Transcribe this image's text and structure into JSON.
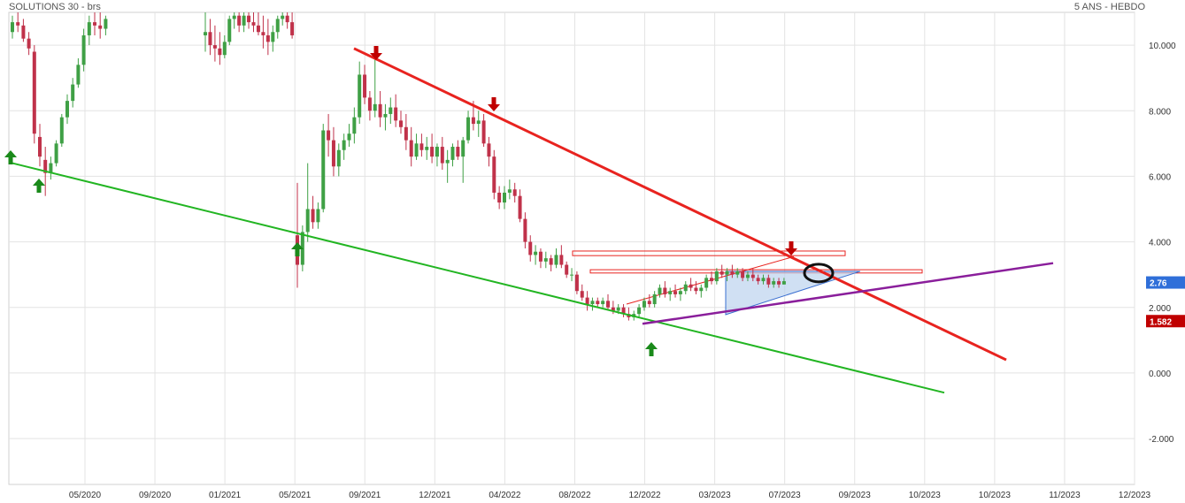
{
  "chart_data": {
    "type": "candlestick",
    "title": "SOLUTIONS 30 - brs",
    "subtitle": "5 ANS - HEBDO",
    "ylim": [
      -3.4,
      11.0
    ],
    "y_ticks": [
      {
        "value": 10,
        "label": "10.000"
      },
      {
        "value": 8,
        "label": "8.000"
      },
      {
        "value": 6,
        "label": "6.000"
      },
      {
        "value": 4,
        "label": "4.000"
      },
      {
        "value": 2,
        "label": "2.000"
      },
      {
        "value": 0,
        "label": "0.000"
      },
      {
        "value": -2,
        "label": "-2.000"
      }
    ],
    "x_labels": [
      "05/2020",
      "09/2020",
      "01/2021",
      "05/2021",
      "09/2021",
      "12/2021",
      "04/2022",
      "08/2022",
      "12/2022",
      "03/2023",
      "07/2023",
      "09/2023",
      "10/2023",
      "10/2023",
      "11/2023",
      "12/2023"
    ],
    "grid": true,
    "price_markers": [
      {
        "value": 2.76,
        "label": "2.76",
        "color": "#2f6fd9"
      },
      {
        "value": 1.582,
        "label": "1.582",
        "color": "#c00000"
      }
    ],
    "candles": [
      [
        10.4,
        10.9,
        10.2,
        10.7
      ],
      [
        10.7,
        11.0,
        10.4,
        10.6
      ],
      [
        10.6,
        10.8,
        10.1,
        10.2
      ],
      [
        10.2,
        10.4,
        9.7,
        9.9
      ],
      [
        9.8,
        10.0,
        7.0,
        7.3
      ],
      [
        7.2,
        7.6,
        6.3,
        6.6
      ],
      [
        6.5,
        6.9,
        5.4,
        6.1
      ],
      [
        6.1,
        6.6,
        5.9,
        6.4
      ],
      [
        6.4,
        7.1,
        6.3,
        7.0
      ],
      [
        7.0,
        7.9,
        6.9,
        7.8
      ],
      [
        7.8,
        8.5,
        7.6,
        8.3
      ],
      [
        8.3,
        9.0,
        8.1,
        8.8
      ],
      [
        8.8,
        9.6,
        8.7,
        9.4
      ],
      [
        9.4,
        10.5,
        9.2,
        10.3
      ],
      [
        10.3,
        10.9,
        10.0,
        10.7
      ],
      [
        10.7,
        11.0,
        10.3,
        10.6
      ],
      [
        10.6,
        11.0,
        10.2,
        10.5
      ],
      [
        10.5,
        10.9,
        10.3,
        10.8
      ],
      [
        10.3,
        11.0,
        9.8,
        10.4
      ],
      [
        10.4,
        10.8,
        9.7,
        10.0
      ],
      [
        10.0,
        10.6,
        9.5,
        9.9
      ],
      [
        9.9,
        10.4,
        9.4,
        9.7
      ],
      [
        9.7,
        10.3,
        9.6,
        10.1
      ],
      [
        10.1,
        10.9,
        10.0,
        10.8
      ],
      [
        10.8,
        11.0,
        10.5,
        10.9
      ],
      [
        10.9,
        11.0,
        10.4,
        10.6
      ],
      [
        10.6,
        11.0,
        10.4,
        10.9
      ],
      [
        10.9,
        11.0,
        10.5,
        10.7
      ],
      [
        10.7,
        11.0,
        10.4,
        10.6
      ],
      [
        10.6,
        11.0,
        10.3,
        10.4
      ],
      [
        10.4,
        10.9,
        9.9,
        10.3
      ],
      [
        10.3,
        10.8,
        9.7,
        10.1
      ],
      [
        10.1,
        10.6,
        9.8,
        10.4
      ],
      [
        10.4,
        10.9,
        10.2,
        10.8
      ],
      [
        10.8,
        11.0,
        10.6,
        10.9
      ],
      [
        10.9,
        11.0,
        10.5,
        10.7
      ],
      [
        10.7,
        11.0,
        10.2,
        10.3
      ],
      [
        4.2,
        5.8,
        2.6,
        3.3
      ],
      [
        3.3,
        4.5,
        3.1,
        4.3
      ],
      [
        4.3,
        6.4,
        4.0,
        5.0
      ],
      [
        5.0,
        5.4,
        4.4,
        4.6
      ],
      [
        4.6,
        5.2,
        4.4,
        5.0
      ],
      [
        5.0,
        7.6,
        4.9,
        7.4
      ],
      [
        7.4,
        7.9,
        6.6,
        7.1
      ],
      [
        7.1,
        7.5,
        6.0,
        6.3
      ],
      [
        6.3,
        7.0,
        6.0,
        6.8
      ],
      [
        6.8,
        7.3,
        6.5,
        7.1
      ],
      [
        7.1,
        7.6,
        6.9,
        7.3
      ],
      [
        7.3,
        8.1,
        7.0,
        7.8
      ],
      [
        7.8,
        9.5,
        7.6,
        9.1
      ],
      [
        9.1,
        9.4,
        8.2,
        8.4
      ],
      [
        8.4,
        8.6,
        7.7,
        8.0
      ],
      [
        8.0,
        9.6,
        7.8,
        8.2
      ],
      [
        8.2,
        8.6,
        7.5,
        7.8
      ],
      [
        7.8,
        8.2,
        7.4,
        7.9
      ],
      [
        7.9,
        8.4,
        7.6,
        8.1
      ],
      [
        8.1,
        8.5,
        7.5,
        7.7
      ],
      [
        7.7,
        8.0,
        7.3,
        7.5
      ],
      [
        7.5,
        7.9,
        6.8,
        7.1
      ],
      [
        7.1,
        7.5,
        6.3,
        6.6
      ],
      [
        6.6,
        7.3,
        6.5,
        7.0
      ],
      [
        7.0,
        7.3,
        6.6,
        6.8
      ],
      [
        6.8,
        7.2,
        6.5,
        6.9
      ],
      [
        6.9,
        7.3,
        6.4,
        6.6
      ],
      [
        6.6,
        7.0,
        6.3,
        6.9
      ],
      [
        6.9,
        7.2,
        6.2,
        6.4
      ],
      [
        6.4,
        6.8,
        5.8,
        6.5
      ],
      [
        6.5,
        7.0,
        6.3,
        6.9
      ],
      [
        6.9,
        7.1,
        6.5,
        6.6
      ],
      [
        6.6,
        7.2,
        5.8,
        7.1
      ],
      [
        7.1,
        8.0,
        7.0,
        7.8
      ],
      [
        7.8,
        8.3,
        7.4,
        7.6
      ],
      [
        7.6,
        8.0,
        7.2,
        7.7
      ],
      [
        7.7,
        7.9,
        6.9,
        7.0
      ],
      [
        7.0,
        7.2,
        6.3,
        6.6
      ],
      [
        6.6,
        6.8,
        5.3,
        5.5
      ],
      [
        5.5,
        5.7,
        5.0,
        5.2
      ],
      [
        5.2,
        5.7,
        5.0,
        5.5
      ],
      [
        5.5,
        5.9,
        5.3,
        5.6
      ],
      [
        5.6,
        5.8,
        5.2,
        5.4
      ],
      [
        5.4,
        5.6,
        4.6,
        4.7
      ],
      [
        4.7,
        4.9,
        3.8,
        4.0
      ],
      [
        4.0,
        4.2,
        3.4,
        3.6
      ],
      [
        3.6,
        3.9,
        3.3,
        3.7
      ],
      [
        3.7,
        3.8,
        3.2,
        3.4
      ],
      [
        3.4,
        3.7,
        3.2,
        3.5
      ],
      [
        3.5,
        3.6,
        3.1,
        3.3
      ],
      [
        3.3,
        3.8,
        3.2,
        3.6
      ],
      [
        3.6,
        3.9,
        3.2,
        3.3
      ],
      [
        3.3,
        3.4,
        2.9,
        3.0
      ],
      [
        3.0,
        3.2,
        2.8,
        3.0
      ],
      [
        3.0,
        3.1,
        2.4,
        2.5
      ],
      [
        2.5,
        2.7,
        2.2,
        2.3
      ],
      [
        2.3,
        2.5,
        1.9,
        2.1
      ],
      [
        2.1,
        2.3,
        1.9,
        2.2
      ],
      [
        2.2,
        2.3,
        2.0,
        2.1
      ],
      [
        2.1,
        2.3,
        2.0,
        2.2
      ],
      [
        2.2,
        2.4,
        1.9,
        2.0
      ],
      [
        2.0,
        2.2,
        1.8,
        1.9
      ],
      [
        1.9,
        2.1,
        1.8,
        2.0
      ],
      [
        2.0,
        2.1,
        1.7,
        1.8
      ],
      [
        1.8,
        2.0,
        1.6,
        1.7
      ],
      [
        1.7,
        1.9,
        1.6,
        1.8
      ],
      [
        1.8,
        2.1,
        1.7,
        2.0
      ],
      [
        2.0,
        2.3,
        1.9,
        2.2
      ],
      [
        2.2,
        2.4,
        2.0,
        2.1
      ],
      [
        2.1,
        2.5,
        2.0,
        2.4
      ],
      [
        2.4,
        2.7,
        2.3,
        2.6
      ],
      [
        2.6,
        2.8,
        2.3,
        2.4
      ],
      [
        2.4,
        2.6,
        2.2,
        2.5
      ],
      [
        2.5,
        2.7,
        2.3,
        2.4
      ],
      [
        2.4,
        2.6,
        2.2,
        2.5
      ],
      [
        2.5,
        2.8,
        2.4,
        2.7
      ],
      [
        2.7,
        2.9,
        2.5,
        2.6
      ],
      [
        2.6,
        2.8,
        2.4,
        2.5
      ],
      [
        2.5,
        2.7,
        2.3,
        2.6
      ],
      [
        2.6,
        3.0,
        2.5,
        2.9
      ],
      [
        2.9,
        3.1,
        2.7,
        2.8
      ],
      [
        2.8,
        3.2,
        2.7,
        3.1
      ],
      [
        3.1,
        3.3,
        2.9,
        3.0
      ],
      [
        3.0,
        3.2,
        2.8,
        3.1
      ],
      [
        3.1,
        3.3,
        2.9,
        3.0
      ],
      [
        3.0,
        3.2,
        2.9,
        3.1
      ],
      [
        3.1,
        3.2,
        2.8,
        2.9
      ],
      [
        2.9,
        3.1,
        2.8,
        3.0
      ],
      [
        3.0,
        3.2,
        2.8,
        2.9
      ],
      [
        2.9,
        3.0,
        2.7,
        2.8
      ],
      [
        2.8,
        3.0,
        2.7,
        2.9
      ],
      [
        2.9,
        3.0,
        2.6,
        2.7
      ],
      [
        2.7,
        2.9,
        2.6,
        2.8
      ],
      [
        2.8,
        2.9,
        2.6,
        2.7
      ],
      [
        2.7,
        2.9,
        2.7,
        2.8
      ]
    ]
  },
  "colors": {
    "up": "#3fa045",
    "down": "#c0324a",
    "resistance_line": "#e8231f",
    "support_line": "#22b522",
    "purple_line": "#8a1e9b",
    "arrow_down": "#c00000",
    "arrow_up": "#1a8a1a",
    "zone_border": "#e8231f",
    "triangle_fill": "#bcd3ee",
    "triangle_border": "#3a6fd0",
    "grid": "#e3e3e3"
  }
}
